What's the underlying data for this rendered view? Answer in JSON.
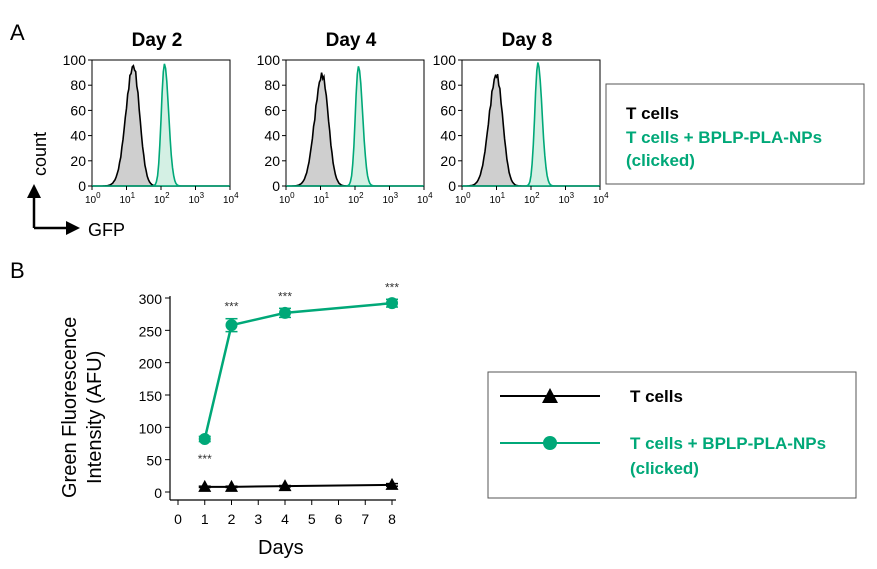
{
  "colors": {
    "control": "#000000",
    "treated": "#00a878",
    "fill_control": "#cfcfcf",
    "fill_treated": "#c9ecdd"
  },
  "panels": {
    "a": "A",
    "b": "B"
  },
  "chart_data": [
    {
      "type": "area",
      "panel": "A",
      "subplots": [
        {
          "title": "Day 2",
          "control_peak_log": 1.2,
          "treated_peak_log": 2.1,
          "control_peak": 95,
          "treated_peak": 97
        },
        {
          "title": "Day 4",
          "control_peak_log": 1.05,
          "treated_peak_log": 2.1,
          "control_peak": 88,
          "treated_peak": 95
        },
        {
          "title": "Day 8",
          "control_peak_log": 1.0,
          "treated_peak_log": 2.2,
          "control_peak": 88,
          "treated_peak": 98
        }
      ],
      "yticks": [
        "0",
        "20",
        "40",
        "60",
        "80",
        "100"
      ],
      "xticks": [
        {
          "base": "10",
          "exp": "0"
        },
        {
          "base": "10",
          "exp": "1"
        },
        {
          "base": "10",
          "exp": "2"
        },
        {
          "base": "10",
          "exp": "3"
        },
        {
          "base": "10",
          "exp": "4"
        }
      ],
      "ylim": [
        0,
        100
      ],
      "xlim_log10": [
        0,
        4
      ],
      "ylabel": "count",
      "xlabel": "GFP",
      "legend": [
        "T cells",
        "T cells + BPLP-PLA-NPs",
        "(clicked)"
      ]
    },
    {
      "type": "line",
      "panel": "B",
      "x": [
        1,
        2,
        4,
        8
      ],
      "series": [
        {
          "name": "T cells",
          "values": [
            8,
            8,
            9,
            11
          ],
          "errors": [
            1,
            1,
            1,
            2
          ],
          "marker": "triangle"
        },
        {
          "name": "T cells + BPLP-PLA-NPs (clicked)",
          "values": [
            82,
            258,
            277,
            292
          ],
          "errors": [
            4,
            10,
            7,
            6
          ],
          "marker": "circle"
        }
      ],
      "significance": [
        "***",
        "***",
        "***",
        "***"
      ],
      "xticks": [
        "0",
        "1",
        "2",
        "3",
        "4",
        "5",
        "6",
        "7",
        "8"
      ],
      "yticks": [
        "0",
        "50",
        "100",
        "150",
        "200",
        "250",
        "300"
      ],
      "xlim": [
        0,
        8
      ],
      "ylim": [
        0,
        300
      ],
      "xlabel": "Days",
      "ylabel_line1": "Green Fluorescence",
      "ylabel_line2": "Intensity (AFU)",
      "legend": [
        "T cells",
        "T cells + BPLP-PLA-NPs",
        "(clicked)"
      ]
    }
  ]
}
